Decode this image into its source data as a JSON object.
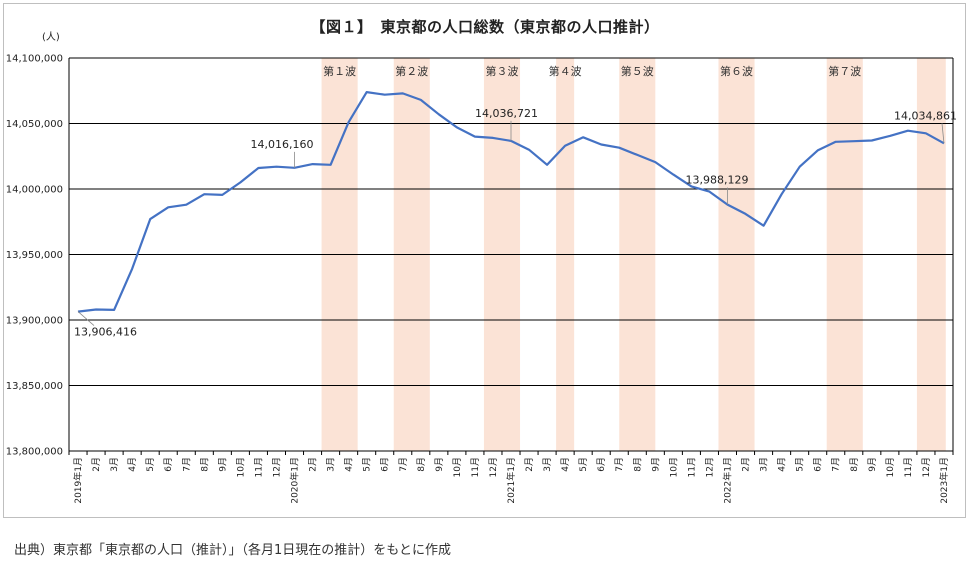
{
  "chart_data": {
    "type": "line",
    "title": "【図１】　東京都の人口総数（東京都の人口推計）",
    "ylabel": "(人)",
    "ylim": [
      13800000,
      14100000
    ],
    "yticks": [
      "13,800,000",
      "13,850,000",
      "13,900,000",
      "13,950,000",
      "14,000,000",
      "14,050,000",
      "14,100,000"
    ],
    "ytick_values": [
      13800000,
      13850000,
      13900000,
      13950000,
      14000000,
      14050000,
      14100000
    ],
    "grid": "horizontal",
    "line_color": "#4472c4",
    "band_color": "#fbe3d6",
    "x": [
      "2019年1月",
      "2月",
      "3月",
      "4月",
      "5月",
      "6月",
      "7月",
      "8月",
      "9月",
      "10月",
      "11月",
      "12月",
      "2020年1月",
      "2月",
      "3月",
      "4月",
      "5月",
      "6月",
      "7月",
      "8月",
      "9月",
      "10月",
      "11月",
      "12月",
      "2021年1月",
      "2月",
      "3月",
      "4月",
      "5月",
      "6月",
      "7月",
      "8月",
      "9月",
      "10月",
      "11月",
      "12月",
      "2022年1月",
      "2月",
      "3月",
      "4月",
      "5月",
      "6月",
      "7月",
      "8月",
      "9月",
      "10月",
      "11月",
      "12月",
      "2023年1月"
    ],
    "series": [
      {
        "values": [
          13906416,
          13908000,
          13907700,
          13939000,
          13977000,
          13986000,
          13988000,
          13996000,
          13995500,
          14005000,
          14016000,
          14017000,
          14016160,
          14019000,
          14018500,
          14051000,
          14074000,
          14072000,
          14073000,
          14068000,
          14057000,
          14047000,
          14040000,
          14039000,
          14036721,
          14030000,
          14018500,
          14033000,
          14039500,
          14034000,
          14031500,
          14026000,
          14020500,
          14011000,
          14002000,
          13998000,
          13988129,
          13981000,
          13972000,
          13996000,
          14017000,
          14029500,
          14036000,
          14036500,
          14037000,
          14040500,
          14044500,
          14042500,
          14034861
        ]
      }
    ],
    "waves": [
      {
        "label": "第１波",
        "start": 14,
        "end": 16
      },
      {
        "label": "第２波",
        "start": 18,
        "end": 20
      },
      {
        "label": "第３波",
        "start": 23,
        "end": 25
      },
      {
        "label": "第４波",
        "start": 27,
        "end": 28
      },
      {
        "label": "第５波",
        "start": 30.5,
        "end": 32.5
      },
      {
        "label": "第６波",
        "start": 36,
        "end": 38
      },
      {
        "label": "第７波",
        "start": 42,
        "end": 44
      },
      {
        "label": "",
        "start": 47,
        "end": 48.6
      }
    ],
    "annotations": [
      {
        "text": "13,906,416",
        "index": 0
      },
      {
        "text": "14,016,160",
        "index": 12
      },
      {
        "text": "14,036,721",
        "index": 24
      },
      {
        "text": "13,988,129",
        "index": 36
      },
      {
        "text": "14,034,861",
        "index": 48
      }
    ]
  },
  "source": "出典）東京都「東京都の人口（推計）」（各月1日現在の推計）をもとに作成"
}
